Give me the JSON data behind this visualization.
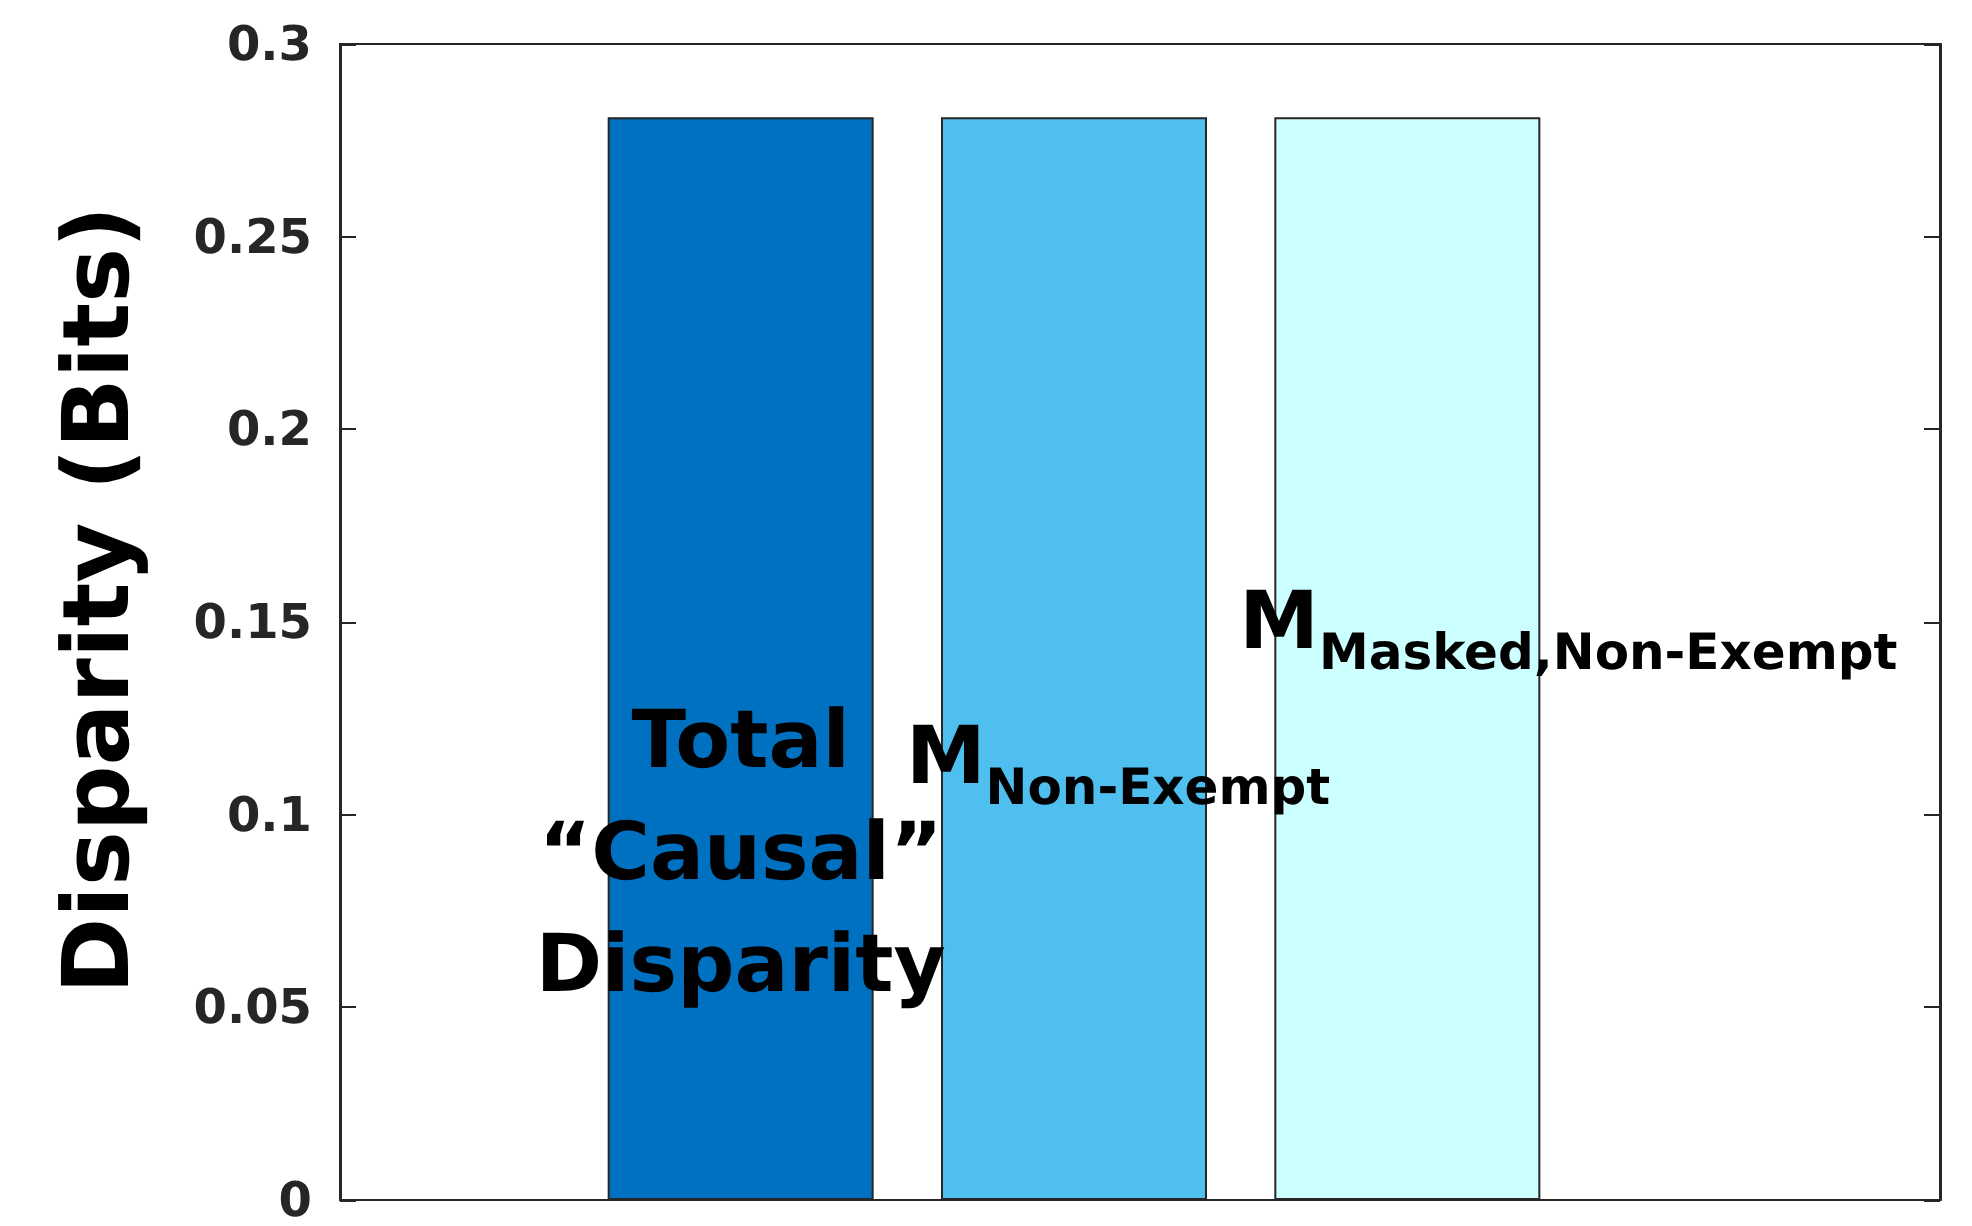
{
  "chart_data": {
    "type": "bar",
    "ylabel": "Disparity (Bits)",
    "categories": [
      null,
      null,
      null
    ],
    "values": [
      0.281,
      0.281,
      0.281
    ],
    "colors": [
      "#0070c0",
      "#4fbfef",
      "#ccffff"
    ],
    "ylim": [
      0,
      0.3
    ],
    "yticks": [
      0,
      0.05,
      0.1,
      0.15,
      0.2,
      0.25,
      0.3
    ],
    "grid": false,
    "annotations": [
      "Total\n“Causal”\nDisparity",
      "M$_{Non-Exempt}$",
      "M$_{Masked,Non-Exempt}$"
    ]
  }
}
